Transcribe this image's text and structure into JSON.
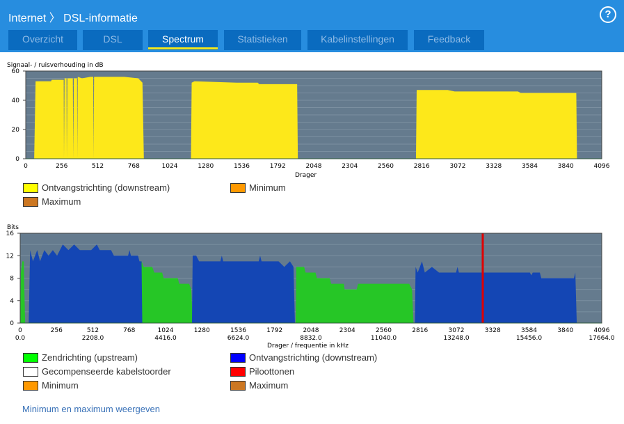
{
  "header": {
    "title": "Internet 〉 DSL-informatie",
    "help_icon": "help-circle-icon"
  },
  "tabs": [
    {
      "label": "Overzicht"
    },
    {
      "label": "DSL"
    },
    {
      "label": "Spectrum",
      "active": true
    },
    {
      "label": "Statistieken"
    },
    {
      "label": "Kabelinstellingen"
    },
    {
      "label": "Feedback"
    }
  ],
  "colors": {
    "header": "#278ddf",
    "tab": "#0a6bbf",
    "active_underline": "#f4e81c",
    "plot_bg": "#657b8e"
  },
  "chart_data": [
    {
      "type": "area",
      "ylabel": "Signaal- / ruisverhouding in dB",
      "xlabel": "Drager",
      "xlim": [
        0,
        4096
      ],
      "ylim": [
        0,
        60
      ],
      "yticks": [
        0,
        20,
        40,
        60
      ],
      "xticks": [
        0,
        256,
        512,
        768,
        1024,
        1280,
        1536,
        1792,
        2048,
        2304,
        2560,
        2816,
        3072,
        3328,
        3584,
        3840,
        4096
      ],
      "grid": true,
      "series": [
        {
          "name": "Ontvangstrichting (downstream)",
          "color": "#fde81a",
          "points": [
            [
              60,
              0
            ],
            [
              70,
              53
            ],
            [
              180,
              53
            ],
            [
              185,
              54
            ],
            [
              270,
              54
            ],
            [
              272,
              0
            ],
            [
              276,
              55
            ],
            [
              290,
              55
            ],
            [
              292,
              0
            ],
            [
              296,
              55
            ],
            [
              335,
              55
            ],
            [
              338,
              0
            ],
            [
              342,
              55
            ],
            [
              365,
              55
            ],
            [
              367,
              0
            ],
            [
              370,
              56
            ],
            [
              400,
              55
            ],
            [
              460,
              56
            ],
            [
              480,
              56
            ],
            [
              482,
              0
            ],
            [
              486,
              56
            ],
            [
              700,
              56
            ],
            [
              800,
              55
            ],
            [
              830,
              52
            ],
            [
              840,
              0
            ],
            [
              1175,
              0
            ],
            [
              1180,
              52
            ],
            [
              1200,
              53
            ],
            [
              1500,
              52
            ],
            [
              1650,
              52
            ],
            [
              1660,
              51
            ],
            [
              1930,
              51
            ],
            [
              1935,
              0
            ],
            [
              2775,
              0
            ],
            [
              2780,
              47
            ],
            [
              3000,
              47
            ],
            [
              3050,
              46
            ],
            [
              3500,
              46
            ],
            [
              3520,
              45
            ],
            [
              3915,
              45
            ],
            [
              3920,
              0
            ]
          ]
        }
      ],
      "legend": [
        {
          "name": "Ontvangstrichting (downstream)",
          "color": "#ffff00"
        },
        {
          "name": "Minimum",
          "color": "#ff9900"
        },
        {
          "name": "Maximum",
          "color": "#cc7722"
        }
      ]
    },
    {
      "type": "area",
      "ylabel": "Bits",
      "xlabel": "Drager / frequentie in kHz",
      "xlim": [
        0,
        4096
      ],
      "ylim": [
        0,
        16
      ],
      "yticks": [
        0,
        4,
        8,
        12,
        16
      ],
      "xticks": [
        0,
        256,
        512,
        768,
        1024,
        1280,
        1536,
        1792,
        2048,
        2304,
        2560,
        2816,
        3072,
        3328,
        3584,
        3840,
        4096
      ],
      "xticks_khz": [
        "0.0",
        "2208.0",
        "4416.0",
        "6624.0",
        "8832.0",
        "11040.0",
        "13248.0",
        "15456.0",
        "17664.0"
      ],
      "grid": true,
      "series": [
        {
          "name": "Zendrichting (upstream)",
          "color": "#26c626",
          "points": [
            [
              0,
              0
            ],
            [
              5,
              9
            ],
            [
              15,
              11
            ],
            [
              25,
              11
            ],
            [
              35,
              0
            ],
            [
              850,
              0
            ],
            [
              855,
              11
            ],
            [
              870,
              10
            ],
            [
              930,
              10
            ],
            [
              945,
              9
            ],
            [
              1000,
              9
            ],
            [
              1010,
              8
            ],
            [
              1110,
              8
            ],
            [
              1120,
              7
            ],
            [
              1190,
              7
            ],
            [
              1205,
              6
            ],
            [
              1215,
              0
            ],
            [
              1940,
              0
            ],
            [
              1945,
              10
            ],
            [
              2000,
              10
            ],
            [
              2010,
              9
            ],
            [
              2080,
              9
            ],
            [
              2090,
              8
            ],
            [
              2180,
              8
            ],
            [
              2190,
              7
            ],
            [
              2280,
              7
            ],
            [
              2285,
              6
            ],
            [
              2370,
              6
            ],
            [
              2380,
              7
            ],
            [
              2740,
              7
            ],
            [
              2760,
              6
            ],
            [
              2770,
              0
            ]
          ]
        },
        {
          "name": "Ontvangstrichting (downstream)",
          "color": "#1446b4",
          "points": [
            [
              60,
              0
            ],
            [
              70,
              13
            ],
            [
              90,
              11
            ],
            [
              120,
              13
            ],
            [
              140,
              11
            ],
            [
              170,
              13
            ],
            [
              200,
              12
            ],
            [
              230,
              13
            ],
            [
              260,
              12
            ],
            [
              300,
              14
            ],
            [
              340,
              13
            ],
            [
              380,
              14
            ],
            [
              420,
              13
            ],
            [
              500,
              13
            ],
            [
              540,
              14
            ],
            [
              560,
              13
            ],
            [
              640,
              13
            ],
            [
              660,
              12
            ],
            [
              760,
              12
            ],
            [
              770,
              13
            ],
            [
              780,
              12
            ],
            [
              830,
              12
            ],
            [
              840,
              11
            ],
            [
              855,
              11
            ],
            [
              860,
              0
            ],
            [
              1210,
              0
            ],
            [
              1215,
              12
            ],
            [
              1240,
              12
            ],
            [
              1260,
              11
            ],
            [
              1410,
              11
            ],
            [
              1420,
              12
            ],
            [
              1430,
              11
            ],
            [
              1680,
              11
            ],
            [
              1690,
              12
            ],
            [
              1700,
              11
            ],
            [
              1820,
              11
            ],
            [
              1860,
              10
            ],
            [
              1900,
              11
            ],
            [
              1925,
              10
            ],
            [
              1935,
              0
            ],
            [
              2780,
              0
            ],
            [
              2785,
              10
            ],
            [
              2800,
              9
            ],
            [
              2830,
              11
            ],
            [
              2850,
              9
            ],
            [
              2900,
              10
            ],
            [
              2950,
              9
            ],
            [
              3070,
              9
            ],
            [
              3080,
              10
            ],
            [
              3090,
              9
            ],
            [
              3590,
              9
            ],
            [
              3600,
              8.5
            ],
            [
              3610,
              9
            ],
            [
              3660,
              9
            ],
            [
              3670,
              8
            ],
            [
              3900,
              8
            ],
            [
              3910,
              9
            ],
            [
              3920,
              0
            ]
          ]
        },
        {
          "name": "Piloottonen",
          "color": "#e00000",
          "carrier": 3258
        }
      ],
      "legend": [
        {
          "name": "Zendrichting (upstream)",
          "color": "#00ff00"
        },
        {
          "name": "Ontvangstrichting (downstream)",
          "color": "#0000ff"
        },
        {
          "name": "Gecompenseerde kabelstoorder",
          "color": "#ffffff"
        },
        {
          "name": "Piloottonen",
          "color": "#ff0000"
        },
        {
          "name": "Minimum",
          "color": "#ff9900"
        },
        {
          "name": "Maximum",
          "color": "#cc7722"
        }
      ]
    }
  ],
  "footer": {
    "link": "Minimum en maximum weergeven"
  }
}
